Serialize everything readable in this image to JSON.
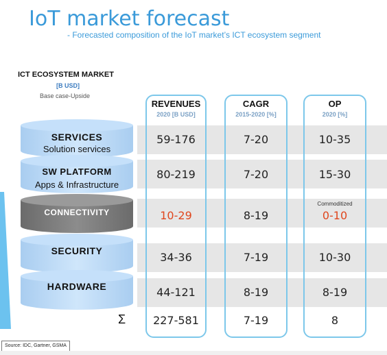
{
  "header": {
    "title": "IoT market forecast",
    "subtitle": "- Forecasted composition of the IoT market’s ICT ecosystem segment"
  },
  "market": {
    "title": "ICT ECOSYSTEM MARKET",
    "unit": "[B USD]",
    "case": "Base case-Upside"
  },
  "columns": {
    "revenues": {
      "label": "REVENUES",
      "sub": "2020 [B USD]"
    },
    "cagr": {
      "label": "CAGR",
      "sub": "2015-2020 [%]"
    },
    "op": {
      "label": "OP",
      "sub": "2020 [%]"
    }
  },
  "rows": [
    {
      "label": "SERVICES",
      "sublabel": "Solution services",
      "revenues": "59-176",
      "cagr": "7-20",
      "op": "10-35"
    },
    {
      "label": "SW PLATFORM",
      "sublabel": "Apps & Infrastructure",
      "revenues": "80-219",
      "cagr": "7-20",
      "op": "15-30"
    },
    {
      "label": "CONNECTIVITY",
      "sublabel": "",
      "revenues": "10-29",
      "cagr": "8-19",
      "op": "0-10",
      "op_note": "Commoditized"
    },
    {
      "label": "SECURITY",
      "sublabel": "",
      "revenues": "34-36",
      "cagr": "7-19",
      "op": "10-30"
    },
    {
      "label": "HARDWARE",
      "sublabel": "",
      "revenues": "44-121",
      "cagr": "8-19",
      "op": "8-19"
    }
  ],
  "total": {
    "symbol": "Σ",
    "revenues": "227-581",
    "cagr": "7-19",
    "op": "8"
  },
  "source": "Source: IDC, Gartner, GSMA",
  "colors": {
    "accent": "#3a9ad9",
    "highlight": "#e0461d",
    "cylinder_blue": "#b9d9f6",
    "cylinder_gray": "#808080",
    "column_border": "#7cc7ea"
  }
}
